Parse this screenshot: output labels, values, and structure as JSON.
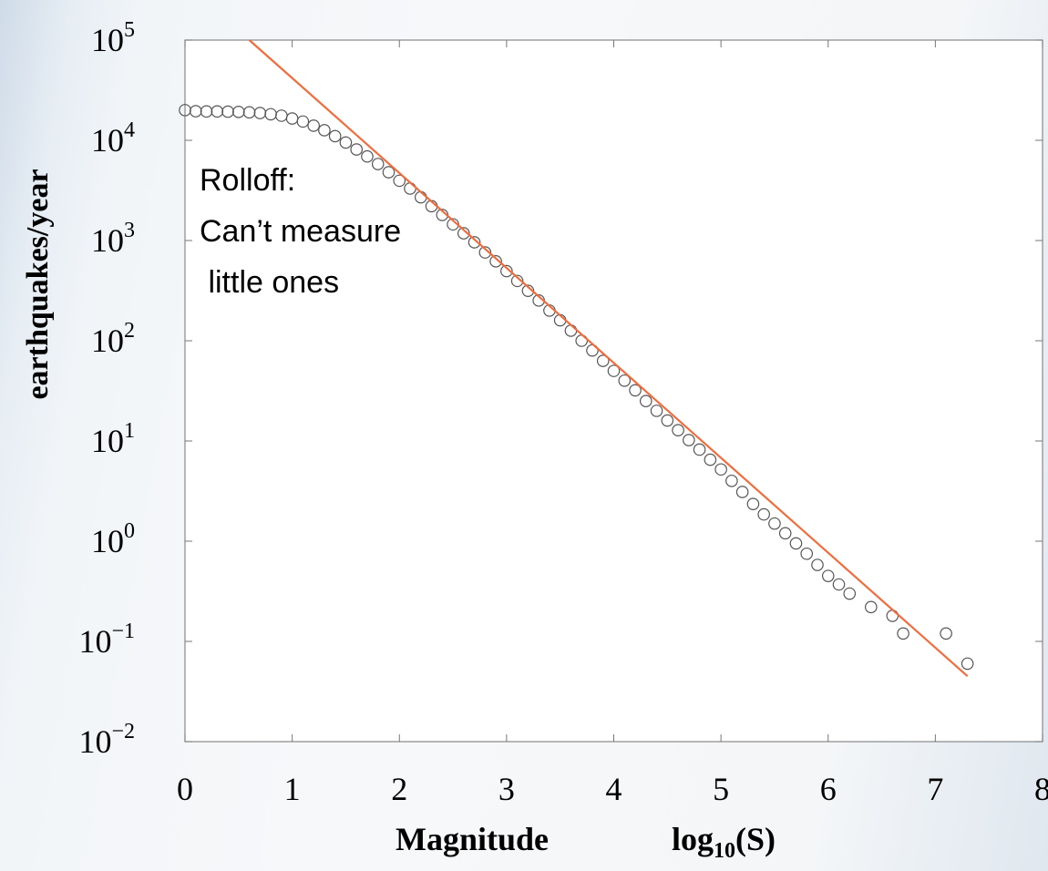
{
  "chart_data": {
    "type": "scatter",
    "x_axis": {
      "label_main": "Magnitude",
      "label_formula": {
        "prefix": "log",
        "subscript": "10",
        "suffix": "(S)"
      },
      "range": [
        0,
        8
      ],
      "ticks": [
        "0",
        "1",
        "2",
        "3",
        "4",
        "5",
        "6",
        "7",
        "8"
      ]
    },
    "y_axis": {
      "label": "earthquakes/year",
      "scale": "log",
      "range_exponents": [
        -2,
        5
      ],
      "ticks": [
        {
          "base": "10",
          "exp": "5"
        },
        {
          "base": "10",
          "exp": "4"
        },
        {
          "base": "10",
          "exp": "3"
        },
        {
          "base": "10",
          "exp": "2"
        },
        {
          "base": "10",
          "exp": "1"
        },
        {
          "base": "10",
          "exp": "0"
        },
        {
          "base": "10",
          "exp": "−1"
        },
        {
          "base": "10",
          "exp": "−2"
        }
      ]
    },
    "series": [
      {
        "kind": "points",
        "marker": "open-circle",
        "color": "#555555",
        "points": [
          [
            0.0,
            20000
          ],
          [
            0.1,
            19500
          ],
          [
            0.2,
            19400
          ],
          [
            0.3,
            19400
          ],
          [
            0.4,
            19300
          ],
          [
            0.5,
            19200
          ],
          [
            0.6,
            19000
          ],
          [
            0.7,
            18700
          ],
          [
            0.8,
            18200
          ],
          [
            0.9,
            17600
          ],
          [
            1.0,
            16500
          ],
          [
            1.1,
            15400
          ],
          [
            1.2,
            14000
          ],
          [
            1.3,
            12600
          ],
          [
            1.4,
            11000
          ],
          [
            1.5,
            9500
          ],
          [
            1.6,
            8100
          ],
          [
            1.7,
            6900
          ],
          [
            1.8,
            5800
          ],
          [
            1.9,
            4800
          ],
          [
            2.0,
            3950
          ],
          [
            2.1,
            3300
          ],
          [
            2.2,
            2700
          ],
          [
            2.3,
            2200
          ],
          [
            2.4,
            1800
          ],
          [
            2.5,
            1450
          ],
          [
            2.6,
            1180
          ],
          [
            2.7,
            960
          ],
          [
            2.8,
            760
          ],
          [
            2.9,
            620
          ],
          [
            3.0,
            495
          ],
          [
            3.1,
            395
          ],
          [
            3.2,
            315
          ],
          [
            3.3,
            252
          ],
          [
            3.4,
            200
          ],
          [
            3.5,
            160
          ],
          [
            3.6,
            126
          ],
          [
            3.7,
            100
          ],
          [
            3.8,
            80
          ],
          [
            3.9,
            63
          ],
          [
            4.0,
            50
          ],
          [
            4.1,
            40
          ],
          [
            4.2,
            32
          ],
          [
            4.3,
            25
          ],
          [
            4.4,
            20
          ],
          [
            4.5,
            16
          ],
          [
            4.6,
            12.8
          ],
          [
            4.7,
            10.2
          ],
          [
            4.8,
            8.2
          ],
          [
            4.9,
            6.5
          ],
          [
            5.0,
            5.2
          ],
          [
            5.1,
            4.0
          ],
          [
            5.2,
            3.1
          ],
          [
            5.3,
            2.35
          ],
          [
            5.4,
            1.85
          ],
          [
            5.5,
            1.5
          ],
          [
            5.6,
            1.2
          ],
          [
            5.7,
            0.95
          ],
          [
            5.8,
            0.75
          ],
          [
            5.9,
            0.58
          ],
          [
            6.0,
            0.45
          ],
          [
            6.1,
            0.37
          ],
          [
            6.2,
            0.3
          ],
          [
            6.4,
            0.22
          ],
          [
            6.6,
            0.18
          ],
          [
            6.7,
            0.12
          ],
          [
            7.1,
            0.12
          ],
          [
            7.3,
            0.06
          ]
        ]
      },
      {
        "kind": "fit-line",
        "color": "#f26b3a",
        "points": [
          [
            0.6,
            100000
          ],
          [
            7.3,
            0.045
          ]
        ]
      }
    ],
    "annotation": {
      "lines": [
        "Rolloff:",
        "Can’t measure",
        " little ones"
      ]
    }
  }
}
